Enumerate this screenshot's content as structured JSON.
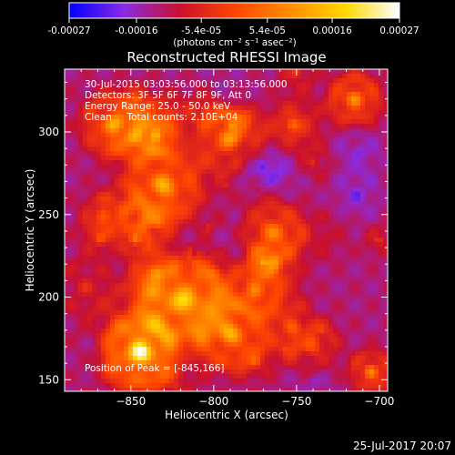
{
  "chart_data": {
    "type": "heatmap",
    "title": "Reconstructed RHESSI Image",
    "xlabel": "Heliocentric X (arcsec)",
    "ylabel": "Heliocentric Y (arcsec)",
    "xlim": [
      -890,
      -695
    ],
    "ylim": [
      143,
      338
    ],
    "x_ticks": [
      -850,
      -800,
      -750,
      -700
    ],
    "x_tick_labels": [
      "−850",
      "−800",
      "−750",
      "−700"
    ],
    "y_ticks": [
      150,
      200,
      250,
      300
    ],
    "y_tick_labels": [
      "150",
      "200",
      "250",
      "300"
    ],
    "colorbar": {
      "min": -0.00027,
      "max": 0.00027,
      "ticks": [
        -0.00027,
        -0.00016,
        -5.4e-05,
        5.4e-05,
        0.00016,
        0.00027
      ],
      "tick_labels": [
        "-0.00027",
        "-0.00016",
        "-5.4e-05",
        "5.4e-05",
        "0.00016",
        "0.00027"
      ],
      "units_label": "(photons cm⁻² s⁻¹ asec⁻²)",
      "colors": [
        "#0000ff",
        "#8a2be2",
        "#c8102e",
        "#ff4500",
        "#ff8c00",
        "#ffd700",
        "#ffffff"
      ]
    },
    "annotations": [
      "30-Jul-2015 03:03:56.000 to 03:13:56.000",
      "Detectors: 3F 5F 6F 7F 8F 9F, Att 0",
      "Energy Range: 25.0 - 50.0 keV",
      "Clean     Total counts: 2.10E+04"
    ],
    "peak_label": "Position of Peak = [-845,166]",
    "sources": [
      {
        "x": -845,
        "y": 166,
        "amp": 1.0,
        "sigma": 14
      },
      {
        "x": -818,
        "y": 198,
        "amp": 0.8,
        "sigma": 16
      },
      {
        "x": -790,
        "y": 178,
        "amp": 0.65,
        "sigma": 14
      },
      {
        "x": -830,
        "y": 268,
        "amp": 0.7,
        "sigma": 14
      },
      {
        "x": -790,
        "y": 295,
        "amp": 0.55,
        "sigma": 13
      },
      {
        "x": -860,
        "y": 305,
        "amp": 0.6,
        "sigma": 12
      },
      {
        "x": -765,
        "y": 240,
        "amp": 0.4,
        "sigma": 12
      },
      {
        "x": -715,
        "y": 320,
        "amp": 0.6,
        "sigma": 10
      },
      {
        "x": -705,
        "y": 155,
        "amp": 0.5,
        "sigma": 8
      },
      {
        "x": -740,
        "y": 170,
        "amp": 0.3,
        "sigma": 10
      }
    ]
  },
  "footer": {
    "timestamp": "25-Jul-2017 20:07"
  }
}
